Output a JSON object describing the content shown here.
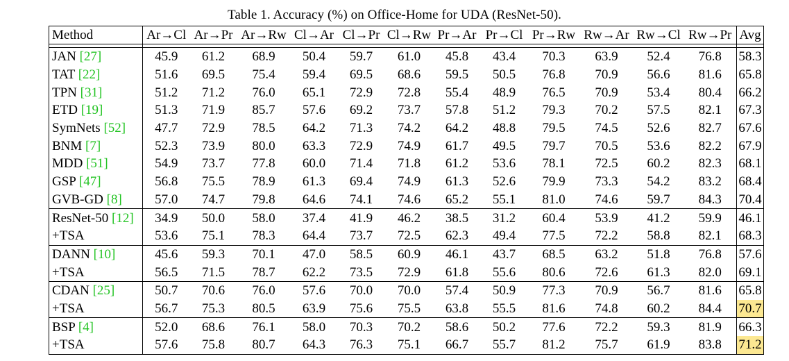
{
  "caption": "Table 1. Accuracy (%) on Office-Home for UDA (ResNet-50).",
  "headers": [
    "Method",
    "Ar→Cl",
    "Ar→Pr",
    "Ar→Rw",
    "Cl→Ar",
    "Cl→Pr",
    "Cl→Rw",
    "Pr→Ar",
    "Pr→Cl",
    "Pr→Rw",
    "Rw→Ar",
    "Rw→Cl",
    "Rw→Pr",
    "Avg"
  ],
  "colors": {
    "citation": "#22c322",
    "highlight": "#fce892"
  },
  "rows": [
    {
      "method": "JAN",
      "ref": "[27]",
      "values": [
        "45.9",
        "61.2",
        "68.9",
        "50.4",
        "59.7",
        "61.0",
        "45.8",
        "43.4",
        "70.3",
        "63.9",
        "52.4",
        "76.8",
        "58.3"
      ],
      "bold": [],
      "highlight": [],
      "group_start": false
    },
    {
      "method": "TAT",
      "ref": "[22]",
      "values": [
        "51.6",
        "69.5",
        "75.4",
        "59.4",
        "69.5",
        "68.6",
        "59.5",
        "50.5",
        "76.8",
        "70.9",
        "56.6",
        "81.6",
        "65.8"
      ],
      "bold": [],
      "highlight": [],
      "group_start": false
    },
    {
      "method": "TPN",
      "ref": "[31]",
      "values": [
        "51.2",
        "71.2",
        "76.0",
        "65.1",
        "72.9",
        "72.8",
        "55.4",
        "48.9",
        "76.5",
        "70.9",
        "53.4",
        "80.4",
        "66.2"
      ],
      "bold": [],
      "highlight": [],
      "group_start": false
    },
    {
      "method": "ETD",
      "ref": "[19]",
      "values": [
        "51.3",
        "71.9",
        "85.7",
        "57.6",
        "69.2",
        "73.7",
        "57.8",
        "51.2",
        "79.3",
        "70.2",
        "57.5",
        "82.1",
        "67.3"
      ],
      "bold": [
        2
      ],
      "highlight": [],
      "group_start": false
    },
    {
      "method": "SymNets",
      "ref": "[52]",
      "values": [
        "47.7",
        "72.9",
        "78.5",
        "64.2",
        "71.3",
        "74.2",
        "64.2",
        "48.8",
        "79.5",
        "74.5",
        "52.6",
        "82.7",
        "67.6"
      ],
      "bold": [],
      "highlight": [],
      "group_start": false
    },
    {
      "method": "BNM",
      "ref": "[7]",
      "values": [
        "52.3",
        "73.9",
        "80.0",
        "63.3",
        "72.9",
        "74.9",
        "61.7",
        "49.5",
        "79.7",
        "70.5",
        "53.6",
        "82.2",
        "67.9"
      ],
      "bold": [],
      "highlight": [],
      "group_start": false
    },
    {
      "method": "MDD",
      "ref": "[51]",
      "values": [
        "54.9",
        "73.7",
        "77.8",
        "60.0",
        "71.4",
        "71.8",
        "61.2",
        "53.6",
        "78.1",
        "72.5",
        "60.2",
        "82.3",
        "68.1"
      ],
      "bold": [],
      "highlight": [],
      "group_start": false
    },
    {
      "method": "GSP",
      "ref": "[47]",
      "values": [
        "56.8",
        "75.5",
        "78.9",
        "61.3",
        "69.4",
        "74.9",
        "61.3",
        "52.6",
        "79.9",
        "73.3",
        "54.2",
        "83.2",
        "68.4"
      ],
      "bold": [],
      "highlight": [],
      "group_start": false
    },
    {
      "method": "GVB-GD",
      "ref": "[8]",
      "values": [
        "57.0",
        "74.7",
        "79.8",
        "64.6",
        "74.1",
        "74.6",
        "65.2",
        "55.1",
        "81.0",
        "74.6",
        "59.7",
        "84.3",
        "70.4"
      ],
      "bold": [
        3
      ],
      "highlight": [],
      "group_start": false
    },
    {
      "method": "ResNet-50",
      "ref": "[12]",
      "values": [
        "34.9",
        "50.0",
        "58.0",
        "37.4",
        "41.9",
        "46.2",
        "38.5",
        "31.2",
        "60.4",
        "53.9",
        "41.2",
        "59.9",
        "46.1"
      ],
      "bold": [],
      "highlight": [],
      "group_start": true
    },
    {
      "method": "+TSA",
      "ref": "",
      "values": [
        "53.6",
        "75.1",
        "78.3",
        "64.4",
        "73.7",
        "72.5",
        "62.3",
        "49.4",
        "77.5",
        "72.2",
        "58.8",
        "82.1",
        "68.3"
      ],
      "bold": [],
      "highlight": [],
      "group_start": false
    },
    {
      "method": "DANN",
      "ref": "[10]",
      "values": [
        "45.6",
        "59.3",
        "70.1",
        "47.0",
        "58.5",
        "60.9",
        "46.1",
        "43.7",
        "68.5",
        "63.2",
        "51.8",
        "76.8",
        "57.6"
      ],
      "bold": [],
      "highlight": [],
      "group_start": true
    },
    {
      "method": "+TSA",
      "ref": "",
      "values": [
        "56.5",
        "71.5",
        "78.7",
        "62.2",
        "73.5",
        "72.9",
        "61.8",
        "55.6",
        "80.6",
        "72.6",
        "61.3",
        "82.0",
        "69.1"
      ],
      "bold": [],
      "highlight": [],
      "group_start": false
    },
    {
      "method": "CDAN",
      "ref": "[25]",
      "values": [
        "50.7",
        "70.6",
        "76.0",
        "57.6",
        "70.0",
        "70.0",
        "57.4",
        "50.9",
        "77.3",
        "70.9",
        "56.7",
        "81.6",
        "65.8"
      ],
      "bold": [],
      "highlight": [],
      "group_start": true
    },
    {
      "method": "+TSA",
      "ref": "",
      "values": [
        "56.7",
        "75.3",
        "80.5",
        "63.9",
        "75.6",
        "75.5",
        "63.8",
        "55.5",
        "81.6",
        "74.8",
        "60.2",
        "84.4",
        "70.7"
      ],
      "bold": [
        5,
        8,
        11
      ],
      "highlight": [
        12
      ],
      "group_start": false
    },
    {
      "method": "BSP",
      "ref": "[4]",
      "values": [
        "52.0",
        "68.6",
        "76.1",
        "58.0",
        "70.3",
        "70.2",
        "58.6",
        "50.2",
        "77.6",
        "72.2",
        "59.3",
        "81.9",
        "66.3"
      ],
      "bold": [],
      "highlight": [],
      "group_start": true
    },
    {
      "method": "+TSA",
      "ref": "",
      "values": [
        "57.6",
        "75.8",
        "80.7",
        "64.3",
        "76.3",
        "75.1",
        "66.7",
        "55.7",
        "81.2",
        "75.7",
        "61.9",
        "83.8",
        "71.2"
      ],
      "bold": [
        0,
        1,
        4,
        6,
        7,
        9,
        10,
        12
      ],
      "highlight": [
        12
      ],
      "group_start": false
    }
  ]
}
